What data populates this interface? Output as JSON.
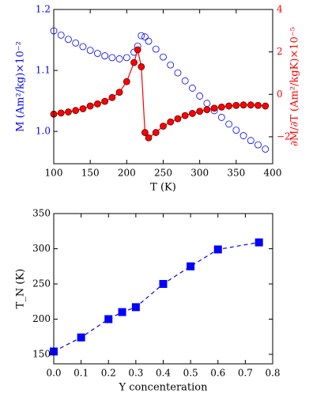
{
  "chart_data": [
    {
      "type": "line",
      "x_label": "T (K)",
      "y_label": "M (Am²/kg)×10⁻²",
      "y2_label": "∂M/∂T (Am²/kgK)×10⁻⁵",
      "x": [
        100,
        110,
        120,
        130,
        140,
        150,
        160,
        170,
        180,
        190,
        200,
        210,
        215,
        220,
        225,
        230,
        240,
        250,
        260,
        270,
        280,
        290,
        300,
        310,
        320,
        330,
        340,
        350,
        360,
        370,
        380,
        390
      ],
      "series": [
        {
          "name": "M",
          "color": "#0000ff",
          "axis": "y",
          "linestyle": "none",
          "marker": "o",
          "values": [
            1.165,
            1.158,
            1.151,
            1.145,
            1.139,
            1.133,
            1.128,
            1.124,
            1.121,
            1.119,
            1.121,
            1.13,
            1.14,
            1.157,
            1.155,
            1.148,
            1.135,
            1.122,
            1.109,
            1.096,
            1.083,
            1.071,
            1.058,
            1.046,
            1.034,
            1.023,
            1.012,
            1.002,
            0.993,
            0.985,
            0.978,
            0.971
          ]
        },
        {
          "name": "∂M/∂T",
          "color": "#ff0000",
          "axis": "y2",
          "linestyle": "solid",
          "marker": "o",
          "values": [
            -0.93,
            -0.88,
            -0.83,
            -0.76,
            -0.68,
            -0.55,
            -0.45,
            -0.33,
            -0.15,
            0.1,
            0.6,
            1.5,
            2.1,
            1.3,
            -1.8,
            -2.05,
            -1.8,
            -1.5,
            -1.3,
            -1.15,
            -1.0,
            -0.9,
            -0.8,
            -0.72,
            -0.65,
            -0.6,
            -0.55,
            -0.52,
            -0.5,
            -0.5,
            -0.52,
            -0.55
          ]
        }
      ],
      "xlim": [
        100,
        400
      ],
      "xticks": [
        100,
        150,
        200,
        250,
        300,
        350,
        400
      ],
      "ylim": [
        0.947,
        1.2
      ],
      "yticks": [
        {
          "value": 1,
          "label": "1.0"
        },
        1.1,
        1.2
      ],
      "y2lim": [
        -3.27,
        4
      ],
      "y2ticks": [
        {
          "value": -2,
          "label": "−2"
        },
        0,
        2,
        4
      ]
    },
    {
      "type": "line",
      "x_label": "Y concenteration",
      "y_label": "T_N (K)",
      "x": [
        0,
        0.1,
        0.2,
        0.25,
        0.3,
        0.4,
        0.5,
        0.6,
        0.75
      ],
      "series": [
        {
          "name": "T_N",
          "color": "#0000ff",
          "axis": "y",
          "linestyle": "dashed",
          "marker": "s",
          "values": [
            154,
            174,
            200,
            210,
            217,
            250,
            275,
            299,
            309
          ]
        }
      ],
      "xlim": [
        0,
        0.8
      ],
      "xticks": [
        {
          "value": 0,
          "label": "0.0"
        },
        0.1,
        0.2,
        0.3,
        0.4,
        0.5,
        0.6,
        0.7,
        0.8
      ],
      "ylim": [
        136.5,
        350
      ],
      "yticks": [
        150,
        200,
        250,
        300,
        350
      ]
    }
  ]
}
